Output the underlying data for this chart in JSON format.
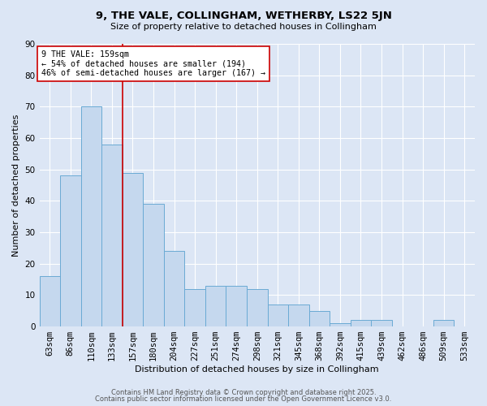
{
  "title1": "9, THE VALE, COLLINGHAM, WETHERBY, LS22 5JN",
  "title2": "Size of property relative to detached houses in Collingham",
  "xlabel": "Distribution of detached houses by size in Collingham",
  "ylabel": "Number of detached properties",
  "categories": [
    "63sqm",
    "86sqm",
    "110sqm",
    "133sqm",
    "157sqm",
    "180sqm",
    "204sqm",
    "227sqm",
    "251sqm",
    "274sqm",
    "298sqm",
    "321sqm",
    "345sqm",
    "368sqm",
    "392sqm",
    "415sqm",
    "439sqm",
    "462sqm",
    "486sqm",
    "509sqm",
    "533sqm"
  ],
  "values": [
    16,
    48,
    70,
    58,
    49,
    39,
    24,
    12,
    13,
    13,
    12,
    7,
    7,
    5,
    1,
    2,
    2,
    0,
    0,
    2,
    0
  ],
  "bar_color": "#c5d8ee",
  "bar_edge_color": "#6aaad4",
  "annotation_text": "9 THE VALE: 159sqm\n← 54% of detached houses are smaller (194)\n46% of semi-detached houses are larger (167) →",
  "vline_x_index": 4,
  "vline_color": "#cc0000",
  "annotation_box_color": "#ffffff",
  "annotation_box_edge_color": "#cc0000",
  "background_color": "#dce6f5",
  "plot_bg_color": "#dce6f5",
  "ylim": [
    0,
    90
  ],
  "yticks": [
    0,
    10,
    20,
    30,
    40,
    50,
    60,
    70,
    80,
    90
  ],
  "footer1": "Contains HM Land Registry data © Crown copyright and database right 2025.",
  "footer2": "Contains public sector information licensed under the Open Government Licence v3.0."
}
